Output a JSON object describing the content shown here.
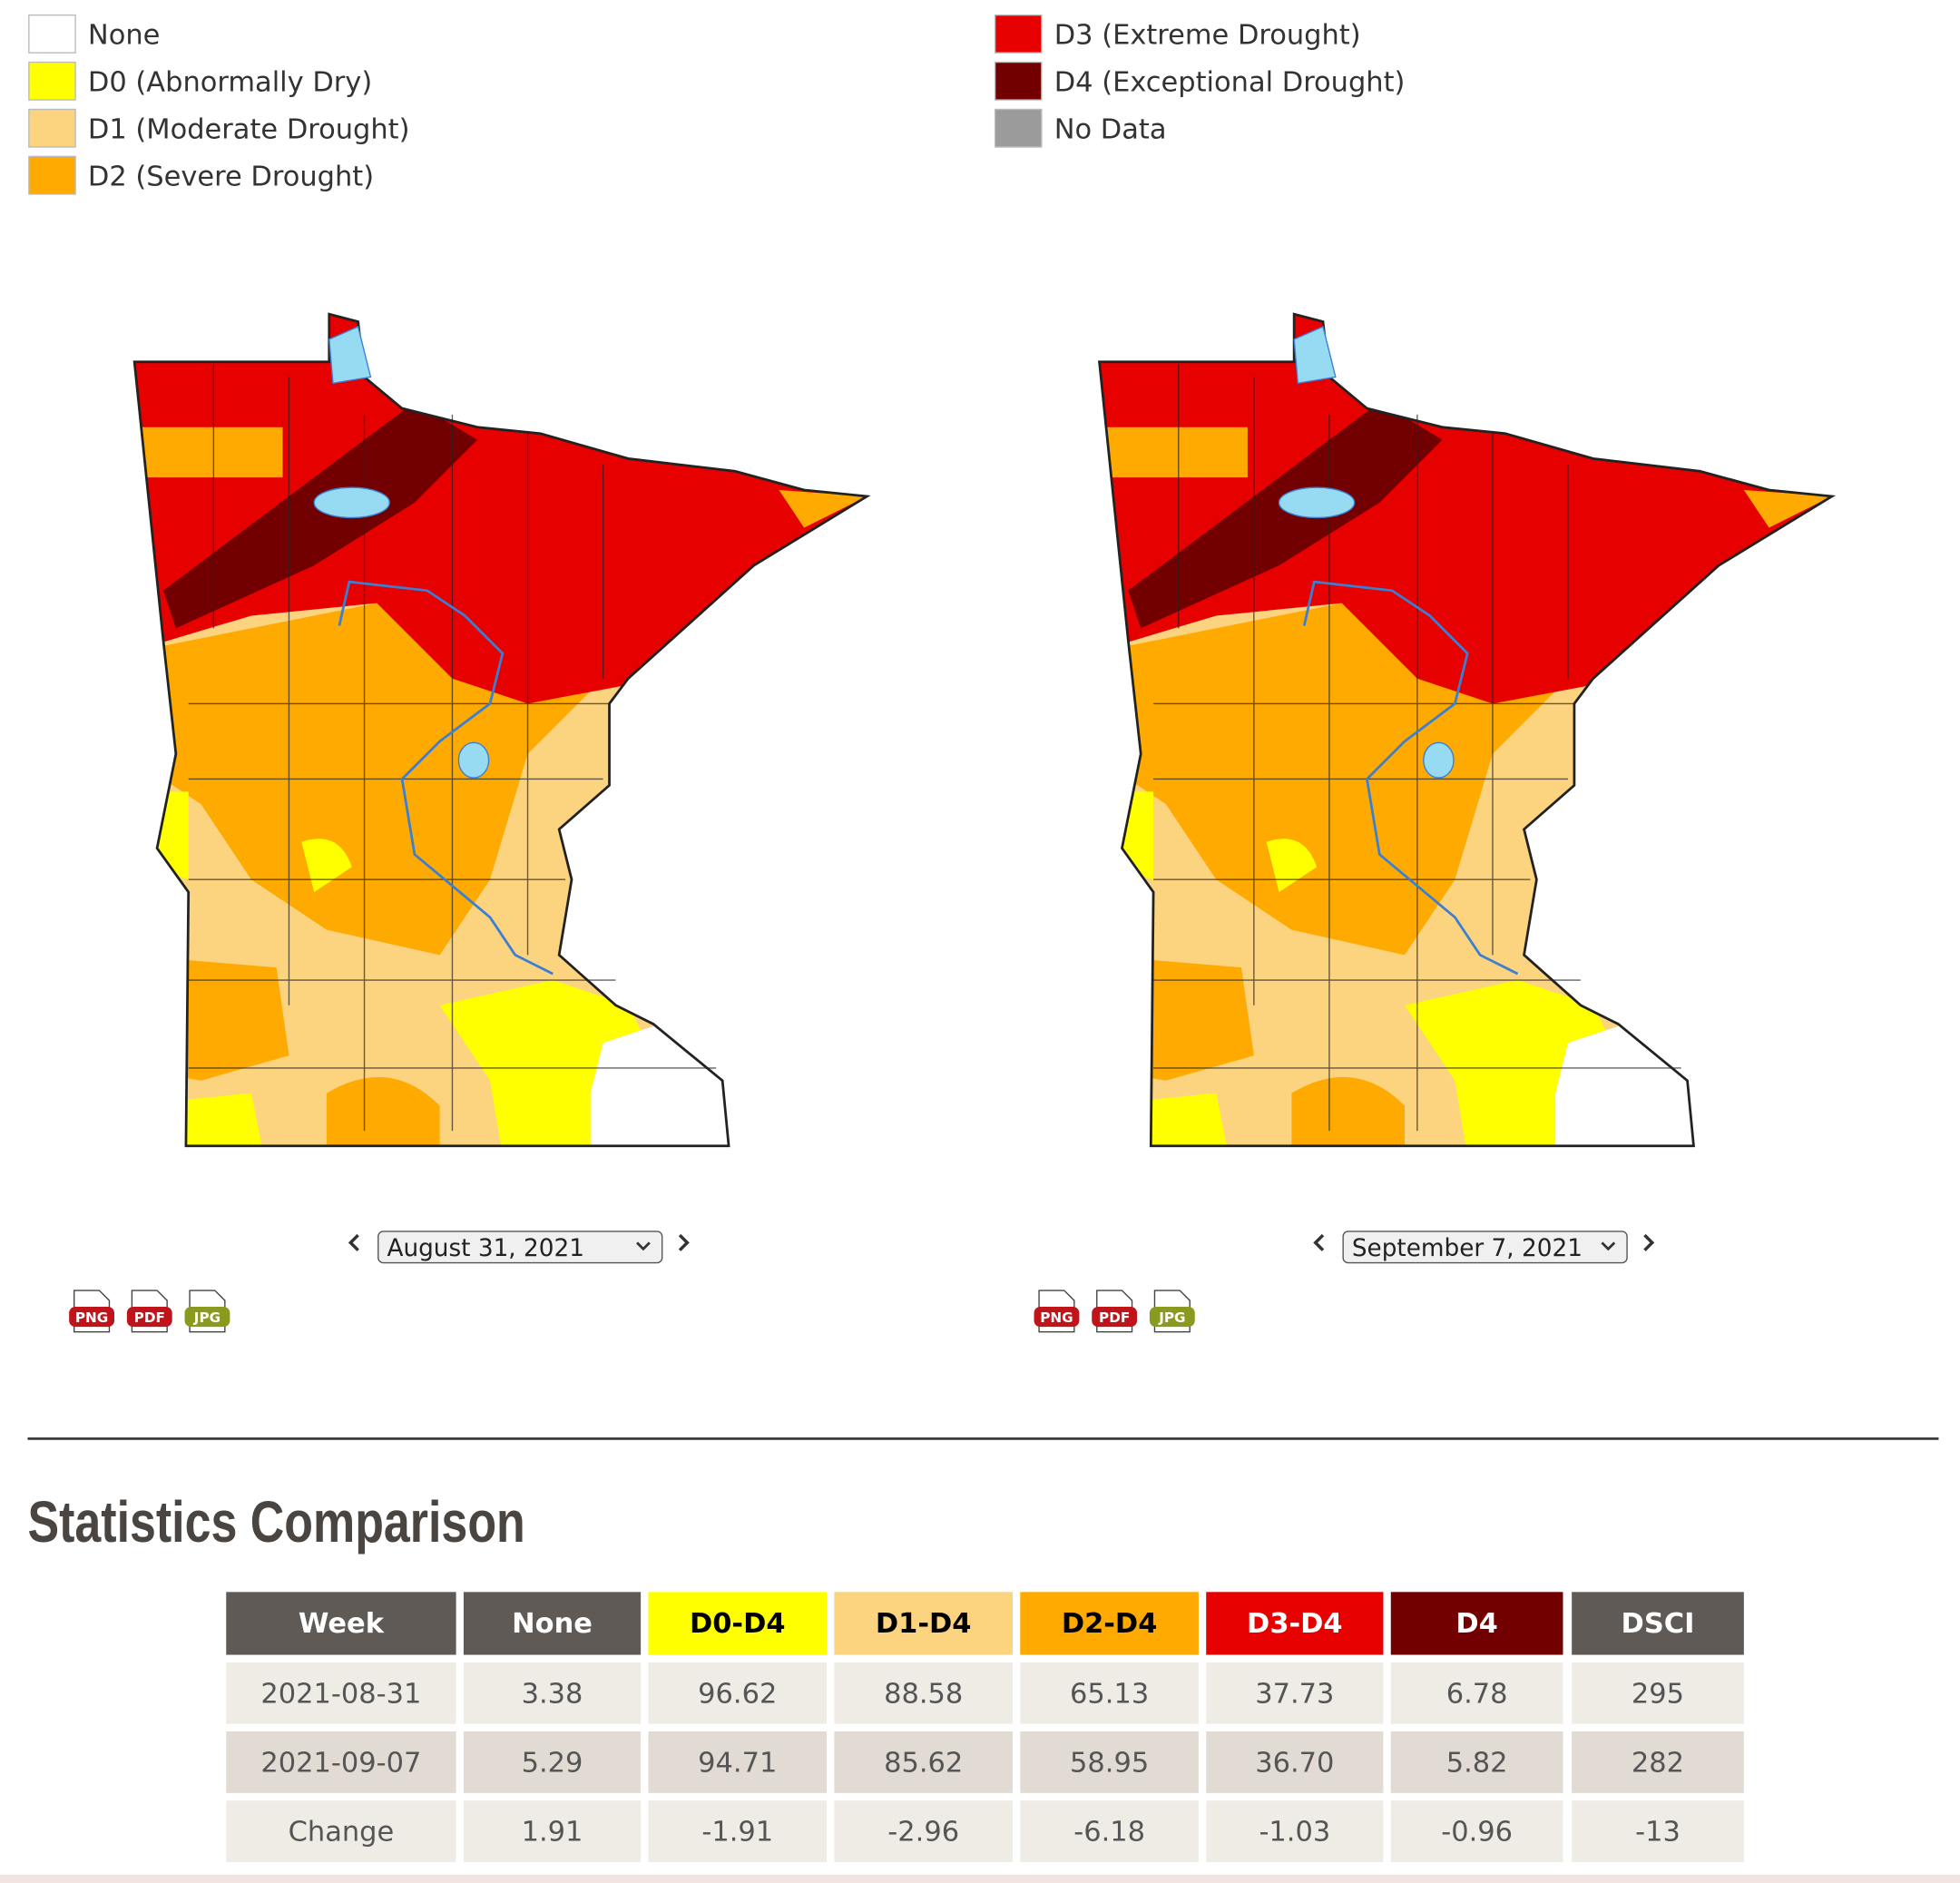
{
  "legend": [
    {
      "label": "None",
      "color": "#ffffff"
    },
    {
      "label": "D0 (Abnormally Dry)",
      "color": "#ffff00"
    },
    {
      "label": "D1 (Moderate Drought)",
      "color": "#fcd37f"
    },
    {
      "label": "D2 (Severe Drought)",
      "color": "#ffaa00"
    },
    {
      "label": "D3 (Extreme Drought)",
      "color": "#e60000"
    },
    {
      "label": "D4 (Exceptional Drought)",
      "color": "#730000"
    },
    {
      "label": "No Data",
      "color": "#9b9b9b"
    }
  ],
  "maps": [
    {
      "date": "August 31, 2021",
      "downloads": [
        {
          "label": "PNG",
          "color": "#c0141b"
        },
        {
          "label": "PDF",
          "color": "#c0141b"
        },
        {
          "label": "JPG",
          "color": "#8a9a1e"
        }
      ]
    },
    {
      "date": "September 7, 2021",
      "downloads": [
        {
          "label": "PNG",
          "color": "#c0141b"
        },
        {
          "label": "PDF",
          "color": "#c0141b"
        },
        {
          "label": "JPG",
          "color": "#8a9a1e"
        }
      ]
    }
  ],
  "statistics": {
    "title": "Statistics Comparison",
    "header": [
      "Week",
      "None",
      "D0-D4",
      "D1-D4",
      "D2-D4",
      "D3-D4",
      "D4",
      "DSCI"
    ],
    "header_colors": [
      {
        "fill": "#5f5a55",
        "text": "#ffffff"
      },
      {
        "fill": "#5f5a55",
        "text": "#ffffff"
      },
      {
        "fill": "#ffff00",
        "text": "#000000"
      },
      {
        "fill": "#fcd37f",
        "text": "#000000"
      },
      {
        "fill": "#ffaa00",
        "text": "#000000"
      },
      {
        "fill": "#e60000",
        "text": "#ffffff"
      },
      {
        "fill": "#730000",
        "text": "#ffffff"
      },
      {
        "fill": "#5f5a55",
        "text": "#ffffff"
      }
    ],
    "rows": [
      [
        "2021-08-31",
        "3.38",
        "96.62",
        "88.58",
        "65.13",
        "37.73",
        "6.78",
        "295"
      ],
      [
        "2021-09-07",
        "5.29",
        "94.71",
        "85.62",
        "58.95",
        "36.70",
        "5.82",
        "282"
      ],
      [
        "Change",
        "1.91",
        "-1.91",
        "-2.96",
        "-6.18",
        "-1.03",
        "-0.96",
        "-13"
      ]
    ]
  }
}
